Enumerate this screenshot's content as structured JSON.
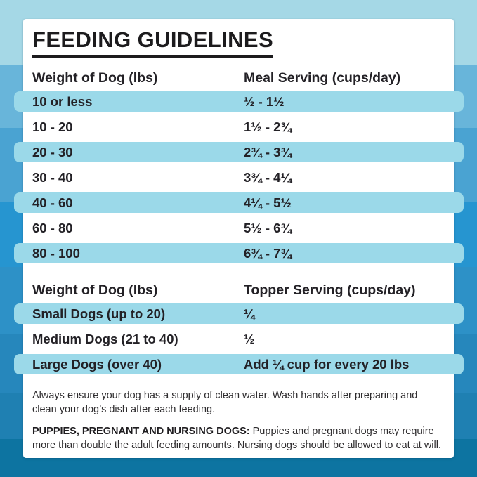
{
  "title": "FEEDING GUIDELINES",
  "meal_table": {
    "col1_header": "Weight of Dog (lbs)",
    "col2_header": "Meal Serving (cups/day)",
    "rows": [
      {
        "weight": "10 or less",
        "serving": "½ - 1½"
      },
      {
        "weight": "10 - 20",
        "serving": "1½ - 2¾"
      },
      {
        "weight": "20 - 30",
        "serving": "2¾ - 3¾"
      },
      {
        "weight": "30 - 40",
        "serving": "3¾ - 4¼"
      },
      {
        "weight": "40 - 60",
        "serving": "4¼ - 5½"
      },
      {
        "weight": "60 - 80",
        "serving": "5½ - 6¾"
      },
      {
        "weight": "80 - 100",
        "serving": "6¾ - 7¾"
      }
    ]
  },
  "topper_table": {
    "col1_header": "Weight of Dog (lbs)",
    "col2_header": "Topper Serving (cups/day)",
    "rows": [
      {
        "weight": "Small Dogs (up to 20)",
        "serving": "¼"
      },
      {
        "weight": "Medium Dogs (21 to 40)",
        "serving": "½"
      },
      {
        "weight": "Large Dogs (over 40)",
        "serving": "Add ¼ cup for every 20 lbs"
      }
    ]
  },
  "notes": {
    "water_note": "Always ensure your dog has a supply of clean water. Wash hands after preparing and clean your dog’s dish after each feeding.",
    "puppies_label": "PUPPIES, PREGNANT AND NURSING DOGS:",
    "puppies_note": "Puppies and pregnant dogs may require more than double the adult feeding amounts. Nursing dogs should be allowed to eat at will."
  },
  "colors": {
    "row_stripe": "#9bd9e9",
    "card_background": "#ffffff",
    "text": "#232126",
    "background_bands": [
      "#a5d8e6",
      "#68b5da",
      "#4aa3d2",
      "#2695d0",
      "#2d91c7",
      "#2687bc",
      "#1f80b2",
      "#0d74a1"
    ]
  }
}
